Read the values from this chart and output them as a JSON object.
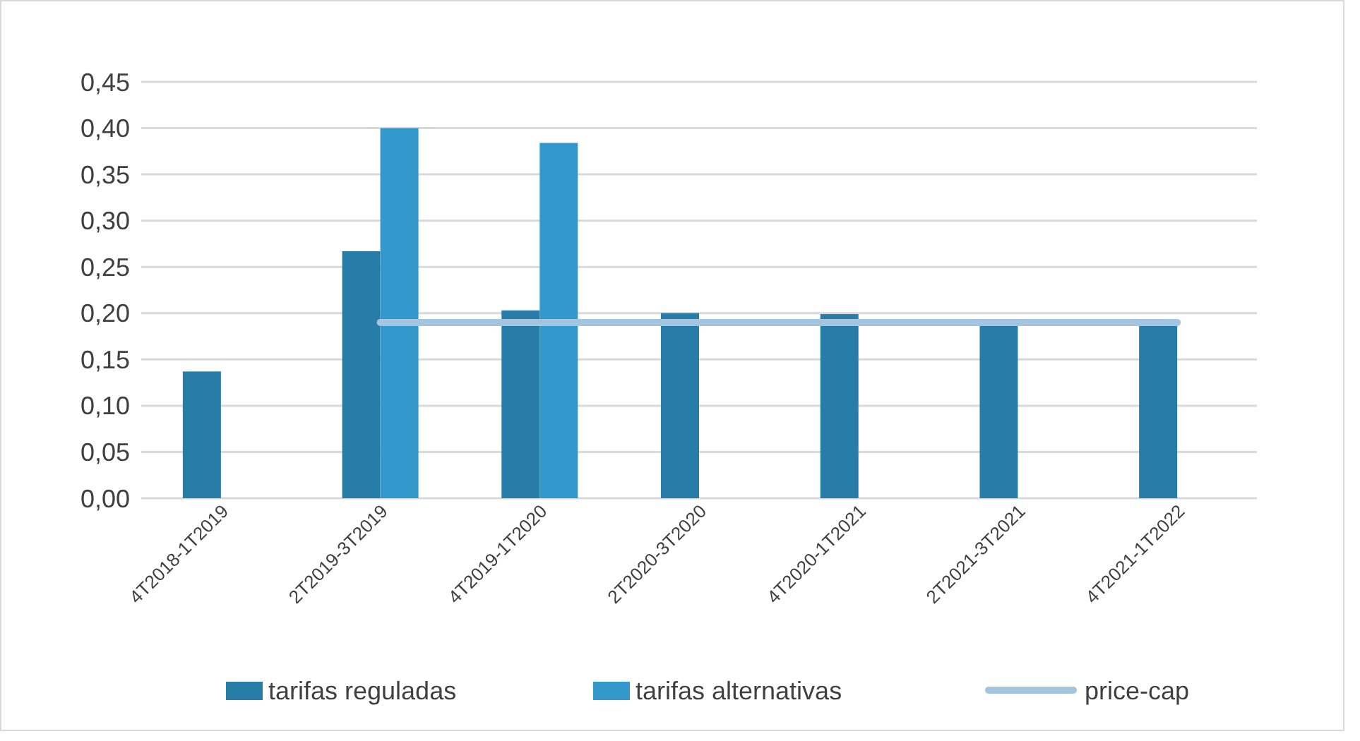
{
  "chart_data": {
    "type": "bar",
    "categories": [
      "4T2018-1T2019",
      "2T2019-3T2019",
      "4T2019-1T2020",
      "2T2020-3T2020",
      "4T2020-1T2021",
      "2T2021-3T2021",
      "4T2021-1T2022"
    ],
    "series": [
      {
        "name": "tarifas reguladas",
        "color": "#287da8",
        "values": [
          0.137,
          0.267,
          0.203,
          0.2,
          0.199,
          0.19,
          0.19
        ]
      },
      {
        "name": "tarifas alternativas",
        "color": "#3399cc",
        "values": [
          null,
          0.4,
          0.384,
          null,
          null,
          null,
          null
        ]
      },
      {
        "name": "price-cap",
        "type": "line",
        "color": "#a3c5e0",
        "values": [
          null,
          0.19,
          0.19,
          0.19,
          0.19,
          0.19,
          0.19
        ]
      }
    ],
    "ylim": [
      0,
      0.45
    ],
    "yticks": [
      {
        "value": 0,
        "label": "0,00"
      },
      {
        "value": 0.05,
        "label": "0,05"
      },
      {
        "value": 0.1,
        "label": "0,10"
      },
      {
        "value": 0.15,
        "label": "0,15"
      },
      {
        "value": 0.2,
        "label": "0,20"
      },
      {
        "value": 0.25,
        "label": "0,25"
      },
      {
        "value": 0.3,
        "label": "0,30"
      },
      {
        "value": 0.35,
        "label": "0,35"
      },
      {
        "value": 0.4,
        "label": "0,40"
      },
      {
        "value": 0.45,
        "label": "0,45"
      }
    ],
    "grid": "y",
    "legend": "bottom"
  }
}
